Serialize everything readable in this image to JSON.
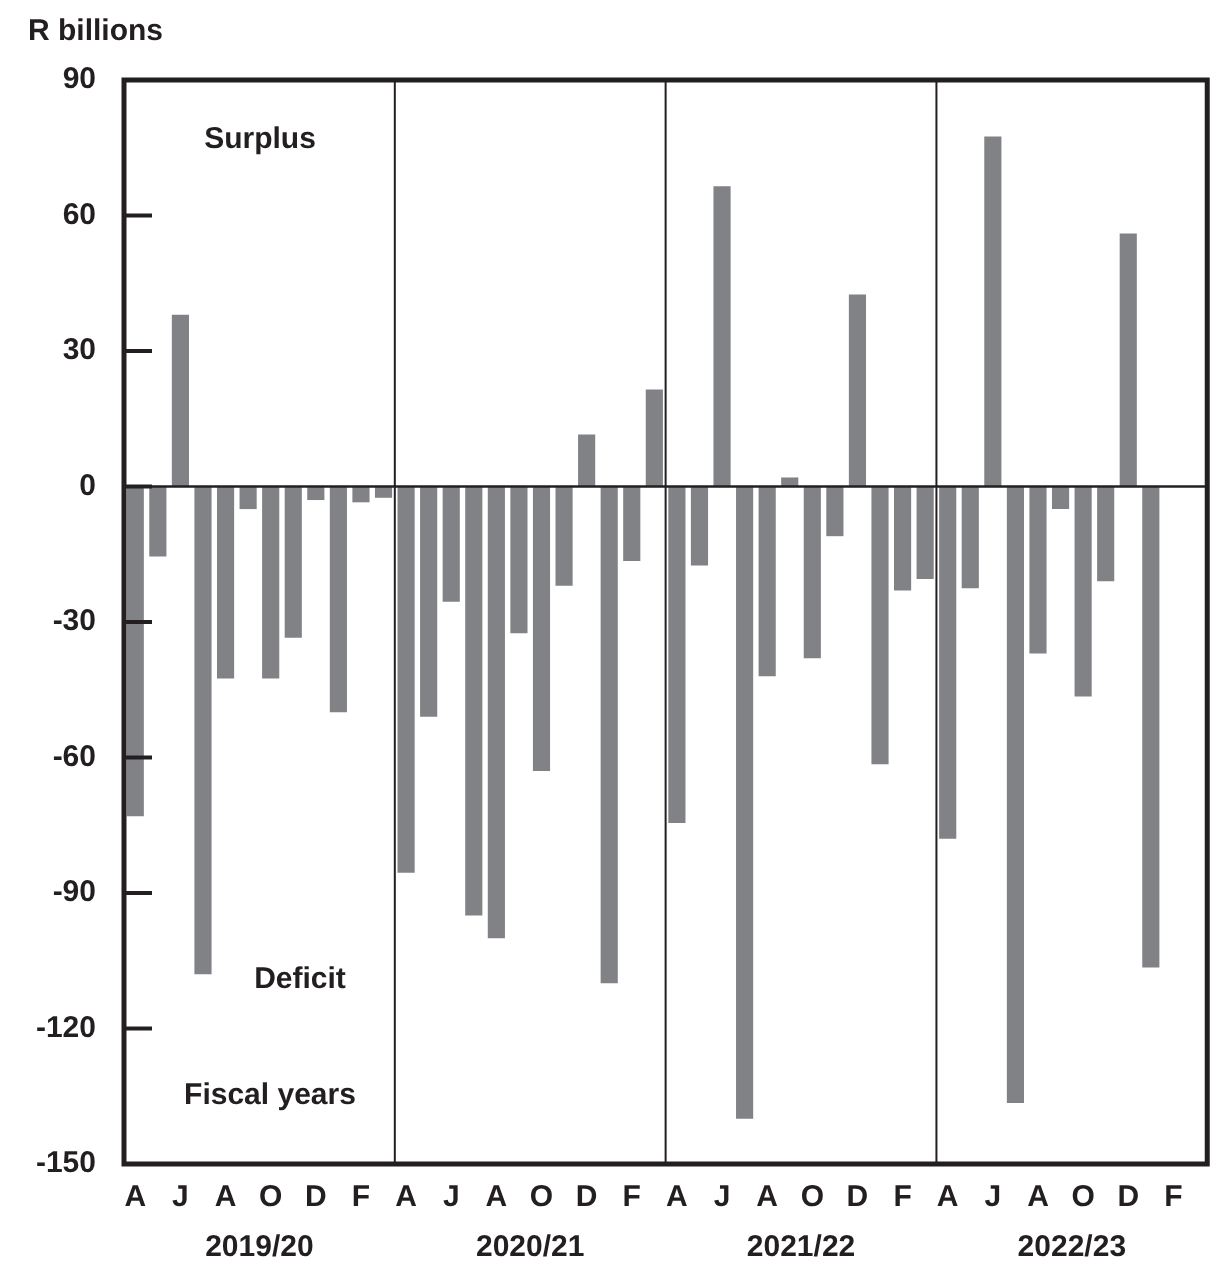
{
  "chart_data": {
    "type": "bar",
    "ylabel": "R billions",
    "categories": [
      "A",
      null,
      "J",
      null,
      "A",
      null,
      "O",
      null,
      "D",
      null,
      "F",
      null,
      "A",
      null,
      "J",
      null,
      "A",
      null,
      "O",
      null,
      "D",
      null,
      "F",
      null,
      "A",
      null,
      "J",
      null,
      "A",
      null,
      "O",
      null,
      "D",
      null,
      "F",
      null,
      "A",
      null,
      "J",
      null,
      "A",
      null,
      "O",
      null,
      "D",
      null,
      "F",
      null
    ],
    "values": [
      -73,
      -15.5,
      38,
      -108,
      -42.5,
      -5,
      -42.5,
      -33.5,
      -3,
      -50,
      -3.5,
      -2.5,
      -85.5,
      -51,
      -25.5,
      -95,
      -100,
      -32.5,
      -63,
      -22,
      11.5,
      -110,
      -16.5,
      21.5,
      -74.5,
      -17.5,
      66.5,
      -140,
      -42,
      2,
      -38,
      -11,
      42.5,
      -61.5,
      -23,
      -20.5,
      -78,
      -22.5,
      77.5,
      -136.5,
      -37,
      -5,
      -46.5,
      -21,
      56,
      -106.5,
      null,
      null
    ],
    "color": "#808285",
    "ylim": [
      -150,
      90
    ],
    "yticks": [
      -150,
      -120,
      -90,
      -60,
      -30,
      0,
      30,
      60,
      90
    ],
    "grid": false,
    "legend": false,
    "annotations": [
      "Surplus",
      "Deficit",
      "Fiscal years",
      "2019/20",
      "2020/21",
      "2021/22",
      "2022/23"
    ]
  }
}
